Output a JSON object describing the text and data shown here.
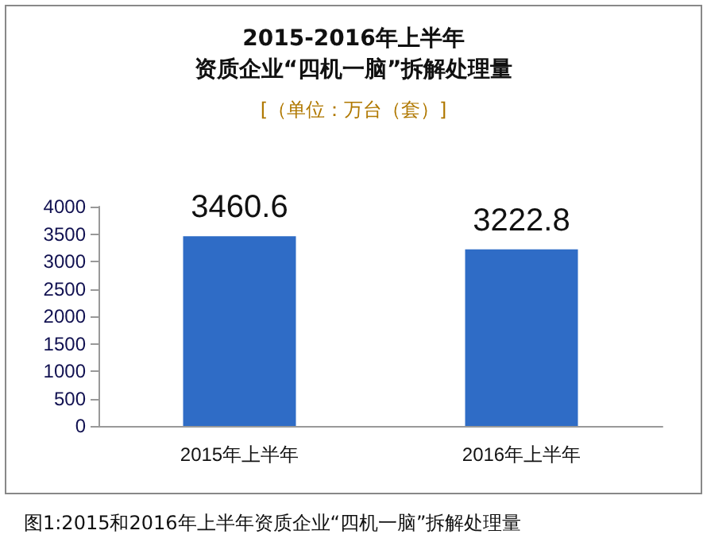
{
  "chart_data": {
    "type": "bar",
    "title": "2015-2016年上半年",
    "subtitle": "资质企业“四机一脑”拆解处理量",
    "categories": [
      "2015年上半年",
      "2016年上半年"
    ],
    "values": [
      3460.6,
      3222.8
    ],
    "color": "#2f6cc6",
    "ylim": [
      0,
      4000
    ],
    "yticks": [
      0,
      500,
      1000,
      1500,
      2000,
      2500,
      3000,
      3500,
      4000
    ],
    "grid": false,
    "data_labels": true,
    "annotations": [
      "[（单位：万台（套）]",
      "图1:2015和2016年上半年资质企业“四机一脑”拆解处理量"
    ]
  }
}
